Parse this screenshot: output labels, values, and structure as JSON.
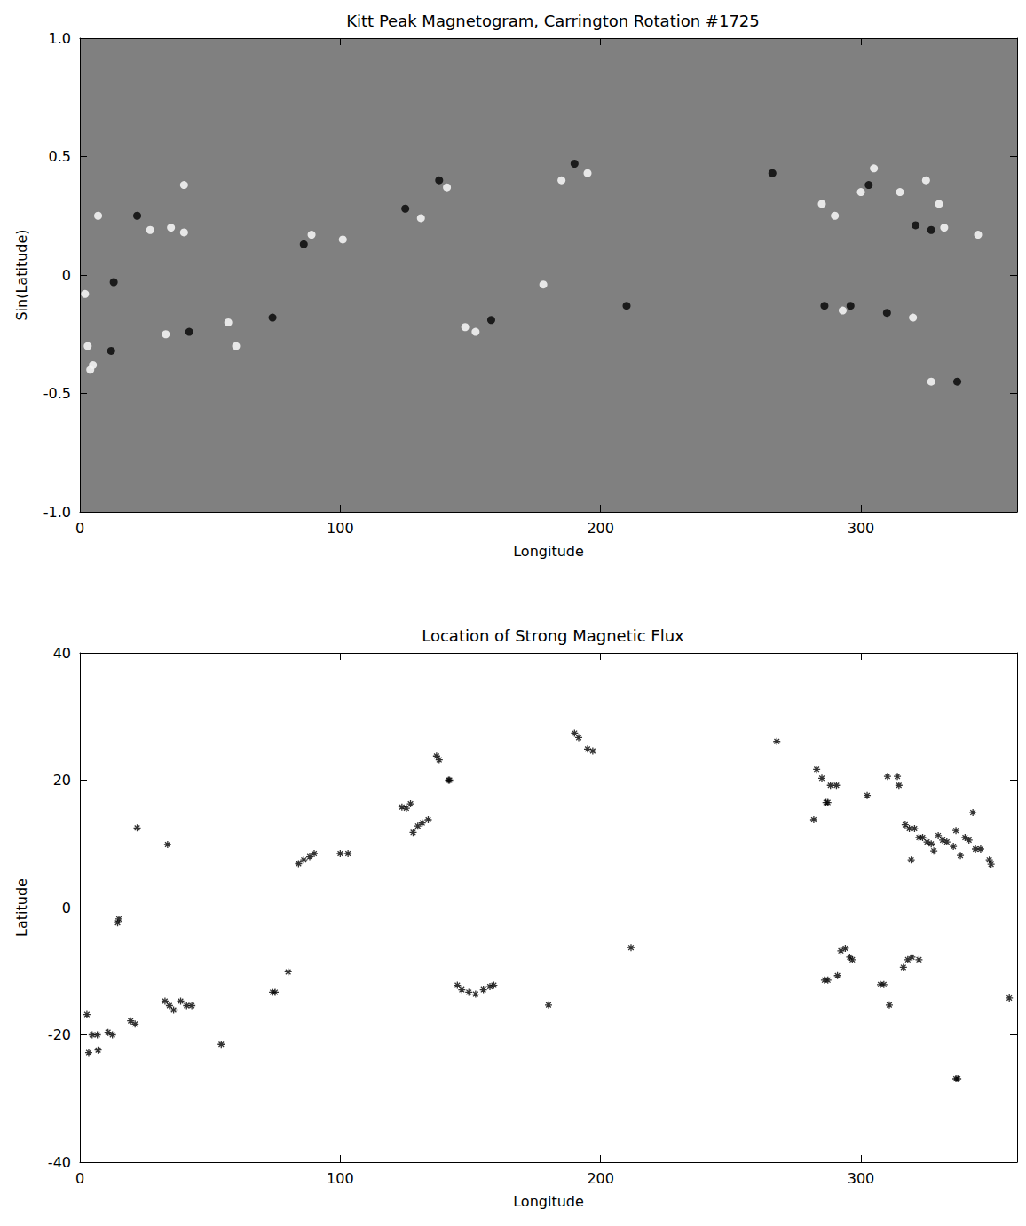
{
  "chart_data": [
    {
      "type": "scatter",
      "title": "Kitt Peak Magnetogram, Carrington Rotation #1725",
      "x_label": "Longitude",
      "y_label": "Sin(Latitude)",
      "xlim": [
        0,
        360
      ],
      "xticks": [
        0,
        100,
        200,
        300
      ],
      "ylim": [
        -1,
        1
      ],
      "yticks": [
        {
          "value": -1,
          "label": "-1.0"
        },
        {
          "value": -0.5,
          "label": "-0.5"
        },
        0,
        0.5,
        {
          "value": 1,
          "label": "1.0"
        }
      ],
      "color": "#808080",
      "marker": "circle",
      "series": [
        {
          "color": "#f2f2f2",
          "values": [
            [
              3,
              -0.3
            ],
            [
              5,
              -0.38
            ],
            [
              2,
              -0.08
            ],
            [
              4,
              -0.4
            ],
            [
              7,
              0.25
            ],
            [
              27,
              0.19
            ],
            [
              35,
              0.2
            ],
            [
              40,
              0.18
            ],
            [
              33,
              -0.25
            ],
            [
              57,
              -0.2
            ],
            [
              60,
              -0.3
            ],
            [
              40,
              0.38
            ],
            [
              89,
              0.17
            ],
            [
              101,
              0.15
            ],
            [
              131,
              0.24
            ],
            [
              141,
              0.37
            ],
            [
              148,
              -0.22
            ],
            [
              152,
              -0.24
            ],
            [
              195,
              0.43
            ],
            [
              185,
              0.4
            ],
            [
              178,
              -0.04
            ],
            [
              285,
              0.3
            ],
            [
              290,
              0.25
            ],
            [
              300,
              0.35
            ],
            [
              293,
              -0.15
            ],
            [
              305,
              0.45
            ],
            [
              315,
              0.35
            ],
            [
              325,
              0.4
            ],
            [
              330,
              0.3
            ],
            [
              332,
              0.2
            ],
            [
              345,
              0.17
            ],
            [
              327,
              -0.45
            ],
            [
              320,
              -0.18
            ]
          ]
        },
        {
          "color": "#101010",
          "values": [
            [
              13,
              -0.03
            ],
            [
              12,
              -0.32
            ],
            [
              22,
              0.25
            ],
            [
              42,
              -0.24
            ],
            [
              74,
              -0.18
            ],
            [
              86,
              0.13
            ],
            [
              125,
              0.28
            ],
            [
              138,
              0.4
            ],
            [
              158,
              -0.19
            ],
            [
              190,
              0.47
            ],
            [
              210,
              -0.13
            ],
            [
              266,
              0.43
            ],
            [
              286,
              -0.13
            ],
            [
              296,
              -0.13
            ],
            [
              303,
              0.38
            ],
            [
              321,
              0.21
            ],
            [
              327,
              0.19
            ],
            [
              310,
              -0.16
            ],
            [
              337,
              -0.45
            ]
          ]
        }
      ]
    },
    {
      "type": "scatter",
      "title": "Location of Strong Magnetic Flux",
      "x_label": "Longitude",
      "y_label": "Latitude",
      "xlim": [
        0,
        360
      ],
      "xticks": [
        0,
        100,
        200,
        300
      ],
      "ylim": [
        -40,
        40
      ],
      "yticks": [
        -40,
        -20,
        0,
        20,
        40
      ],
      "marker": "asterisk",
      "series": [
        {
          "color": "#000000",
          "values": [
            [
              2.7,
              -16.8
            ],
            [
              3.4,
              -22.8
            ],
            [
              4.7,
              -20
            ],
            [
              6.7,
              -20
            ],
            [
              7,
              -22.4
            ],
            [
              10.8,
              -19.6
            ],
            [
              12.5,
              -20
            ],
            [
              14.5,
              -2.4
            ],
            [
              15,
              -1.8
            ],
            [
              19.5,
              -17.8
            ],
            [
              21.2,
              -18.3
            ],
            [
              22,
              12.5
            ],
            [
              33.7,
              9.9
            ],
            [
              32.7,
              -14.7
            ],
            [
              34.4,
              -15.4
            ],
            [
              36,
              -16.1
            ],
            [
              38.7,
              -14.7
            ],
            [
              41,
              -15.4
            ],
            [
              43,
              -15.4
            ],
            [
              54.3,
              -21.5
            ],
            [
              74,
              -13.3
            ],
            [
              75,
              -13.3
            ],
            [
              80,
              -10.1
            ],
            [
              84,
              6.9
            ],
            [
              86,
              7.5
            ],
            [
              88.3,
              8
            ],
            [
              90,
              8.5
            ],
            [
              100,
              8.5
            ],
            [
              103,
              8.5
            ],
            [
              123.7,
              15.8
            ],
            [
              125.4,
              15.6
            ],
            [
              127,
              16.3
            ],
            [
              128,
              11.8
            ],
            [
              129.8,
              12.8
            ],
            [
              131.5,
              13.3
            ],
            [
              133.8,
              13.8
            ],
            [
              137,
              23.8
            ],
            [
              138,
              23.2
            ],
            [
              141.6,
              20
            ],
            [
              142,
              20
            ],
            [
              145,
              -12.2
            ],
            [
              146.7,
              -12.9
            ],
            [
              149.4,
              -13.3
            ],
            [
              152,
              -13.6
            ],
            [
              155,
              -12.9
            ],
            [
              157.5,
              -12.4
            ],
            [
              159,
              -12.2
            ],
            [
              180,
              -15.3
            ],
            [
              190,
              27.4
            ],
            [
              191.6,
              26.7
            ],
            [
              195,
              24.9
            ],
            [
              197,
              24.6
            ],
            [
              211.7,
              -6.3
            ],
            [
              267.7,
              26.1
            ],
            [
              281.9,
              13.8
            ],
            [
              283,
              21.7
            ],
            [
              285,
              20.3
            ],
            [
              286.6,
              16.5
            ],
            [
              287.3,
              16.5
            ],
            [
              288.3,
              19.2
            ],
            [
              290.6,
              19.2
            ],
            [
              286,
              -11.4
            ],
            [
              287.3,
              -11.4
            ],
            [
              291,
              -10.7
            ],
            [
              292.3,
              -6.8
            ],
            [
              294,
              -6.4
            ],
            [
              295.7,
              -7.8
            ],
            [
              296.7,
              -8.2
            ],
            [
              302.4,
              17.6
            ],
            [
              307.5,
              -12.1
            ],
            [
              308.8,
              -12.1
            ],
            [
              310.2,
              20.6
            ],
            [
              310.9,
              -15.3
            ],
            [
              314,
              20.6
            ],
            [
              314.6,
              19.2
            ],
            [
              317,
              13
            ],
            [
              318.6,
              12.4
            ],
            [
              319.3,
              7.5
            ],
            [
              320.6,
              12.4
            ],
            [
              322.3,
              11
            ],
            [
              323.7,
              11
            ],
            [
              325.4,
              10.3
            ],
            [
              327,
              10
            ],
            [
              328,
              8.9
            ],
            [
              329.7,
              11.3
            ],
            [
              331.4,
              10.6
            ],
            [
              333,
              10.3
            ],
            [
              335.5,
              9.6
            ],
            [
              336.5,
              12.1
            ],
            [
              338.2,
              8.2
            ],
            [
              340,
              11
            ],
            [
              341.5,
              10.6
            ],
            [
              343,
              14.9
            ],
            [
              344,
              9.2
            ],
            [
              346,
              9.2
            ],
            [
              349.3,
              7.5
            ],
            [
              350,
              6.8
            ],
            [
              316.3,
              -9.4
            ],
            [
              318,
              -8.2
            ],
            [
              319.6,
              -7.8
            ],
            [
              322.3,
              -8.2
            ],
            [
              336.5,
              -26.9
            ],
            [
              337.2,
              -26.9
            ],
            [
              357,
              -14.2
            ]
          ]
        }
      ]
    }
  ]
}
